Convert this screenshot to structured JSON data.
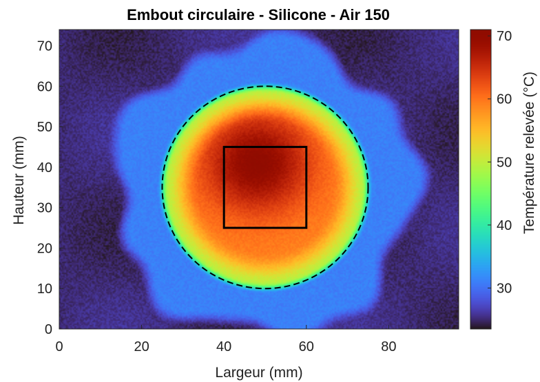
{
  "chart_data": {
    "type": "heatmap",
    "title": "Embout circulaire - Silicone - Air 150",
    "xlabel": "Largeur (mm)",
    "ylabel": "Hauteur (mm)",
    "colorbar_label": "Température relevée (°C)",
    "xlim": [
      0,
      97
    ],
    "ylim": [
      0,
      74
    ],
    "xticks": [
      "0",
      "20",
      "40",
      "60",
      "80"
    ],
    "yticks": [
      "0",
      "10",
      "20",
      "30",
      "40",
      "50",
      "60",
      "70"
    ],
    "colorbar_range": [
      23.5,
      71
    ],
    "colorbar_ticks": [
      "30",
      "40",
      "50",
      "60",
      "70"
    ],
    "colormap": "turbo",
    "field": {
      "background_temp": 25,
      "inner_ring_temp": 31,
      "inner_ring_center": [
        50,
        35
      ],
      "inner_ring_radius": 37,
      "hot_disk_center": [
        50,
        35
      ],
      "hot_disk_radius": 25,
      "hot_disk_edge_temp": 45,
      "hot_spot_center": [
        48,
        41
      ],
      "hot_spot_temp": 70.5,
      "hot_spot_falloff_temp": 59
    },
    "dashed_circle": {
      "center": [
        50,
        35
      ],
      "radius": 25,
      "color": "#000000",
      "style": "dashed"
    },
    "rectangle": {
      "x": [
        40,
        60
      ],
      "y": [
        25,
        45
      ],
      "color": "#000000",
      "style": "solid"
    }
  }
}
